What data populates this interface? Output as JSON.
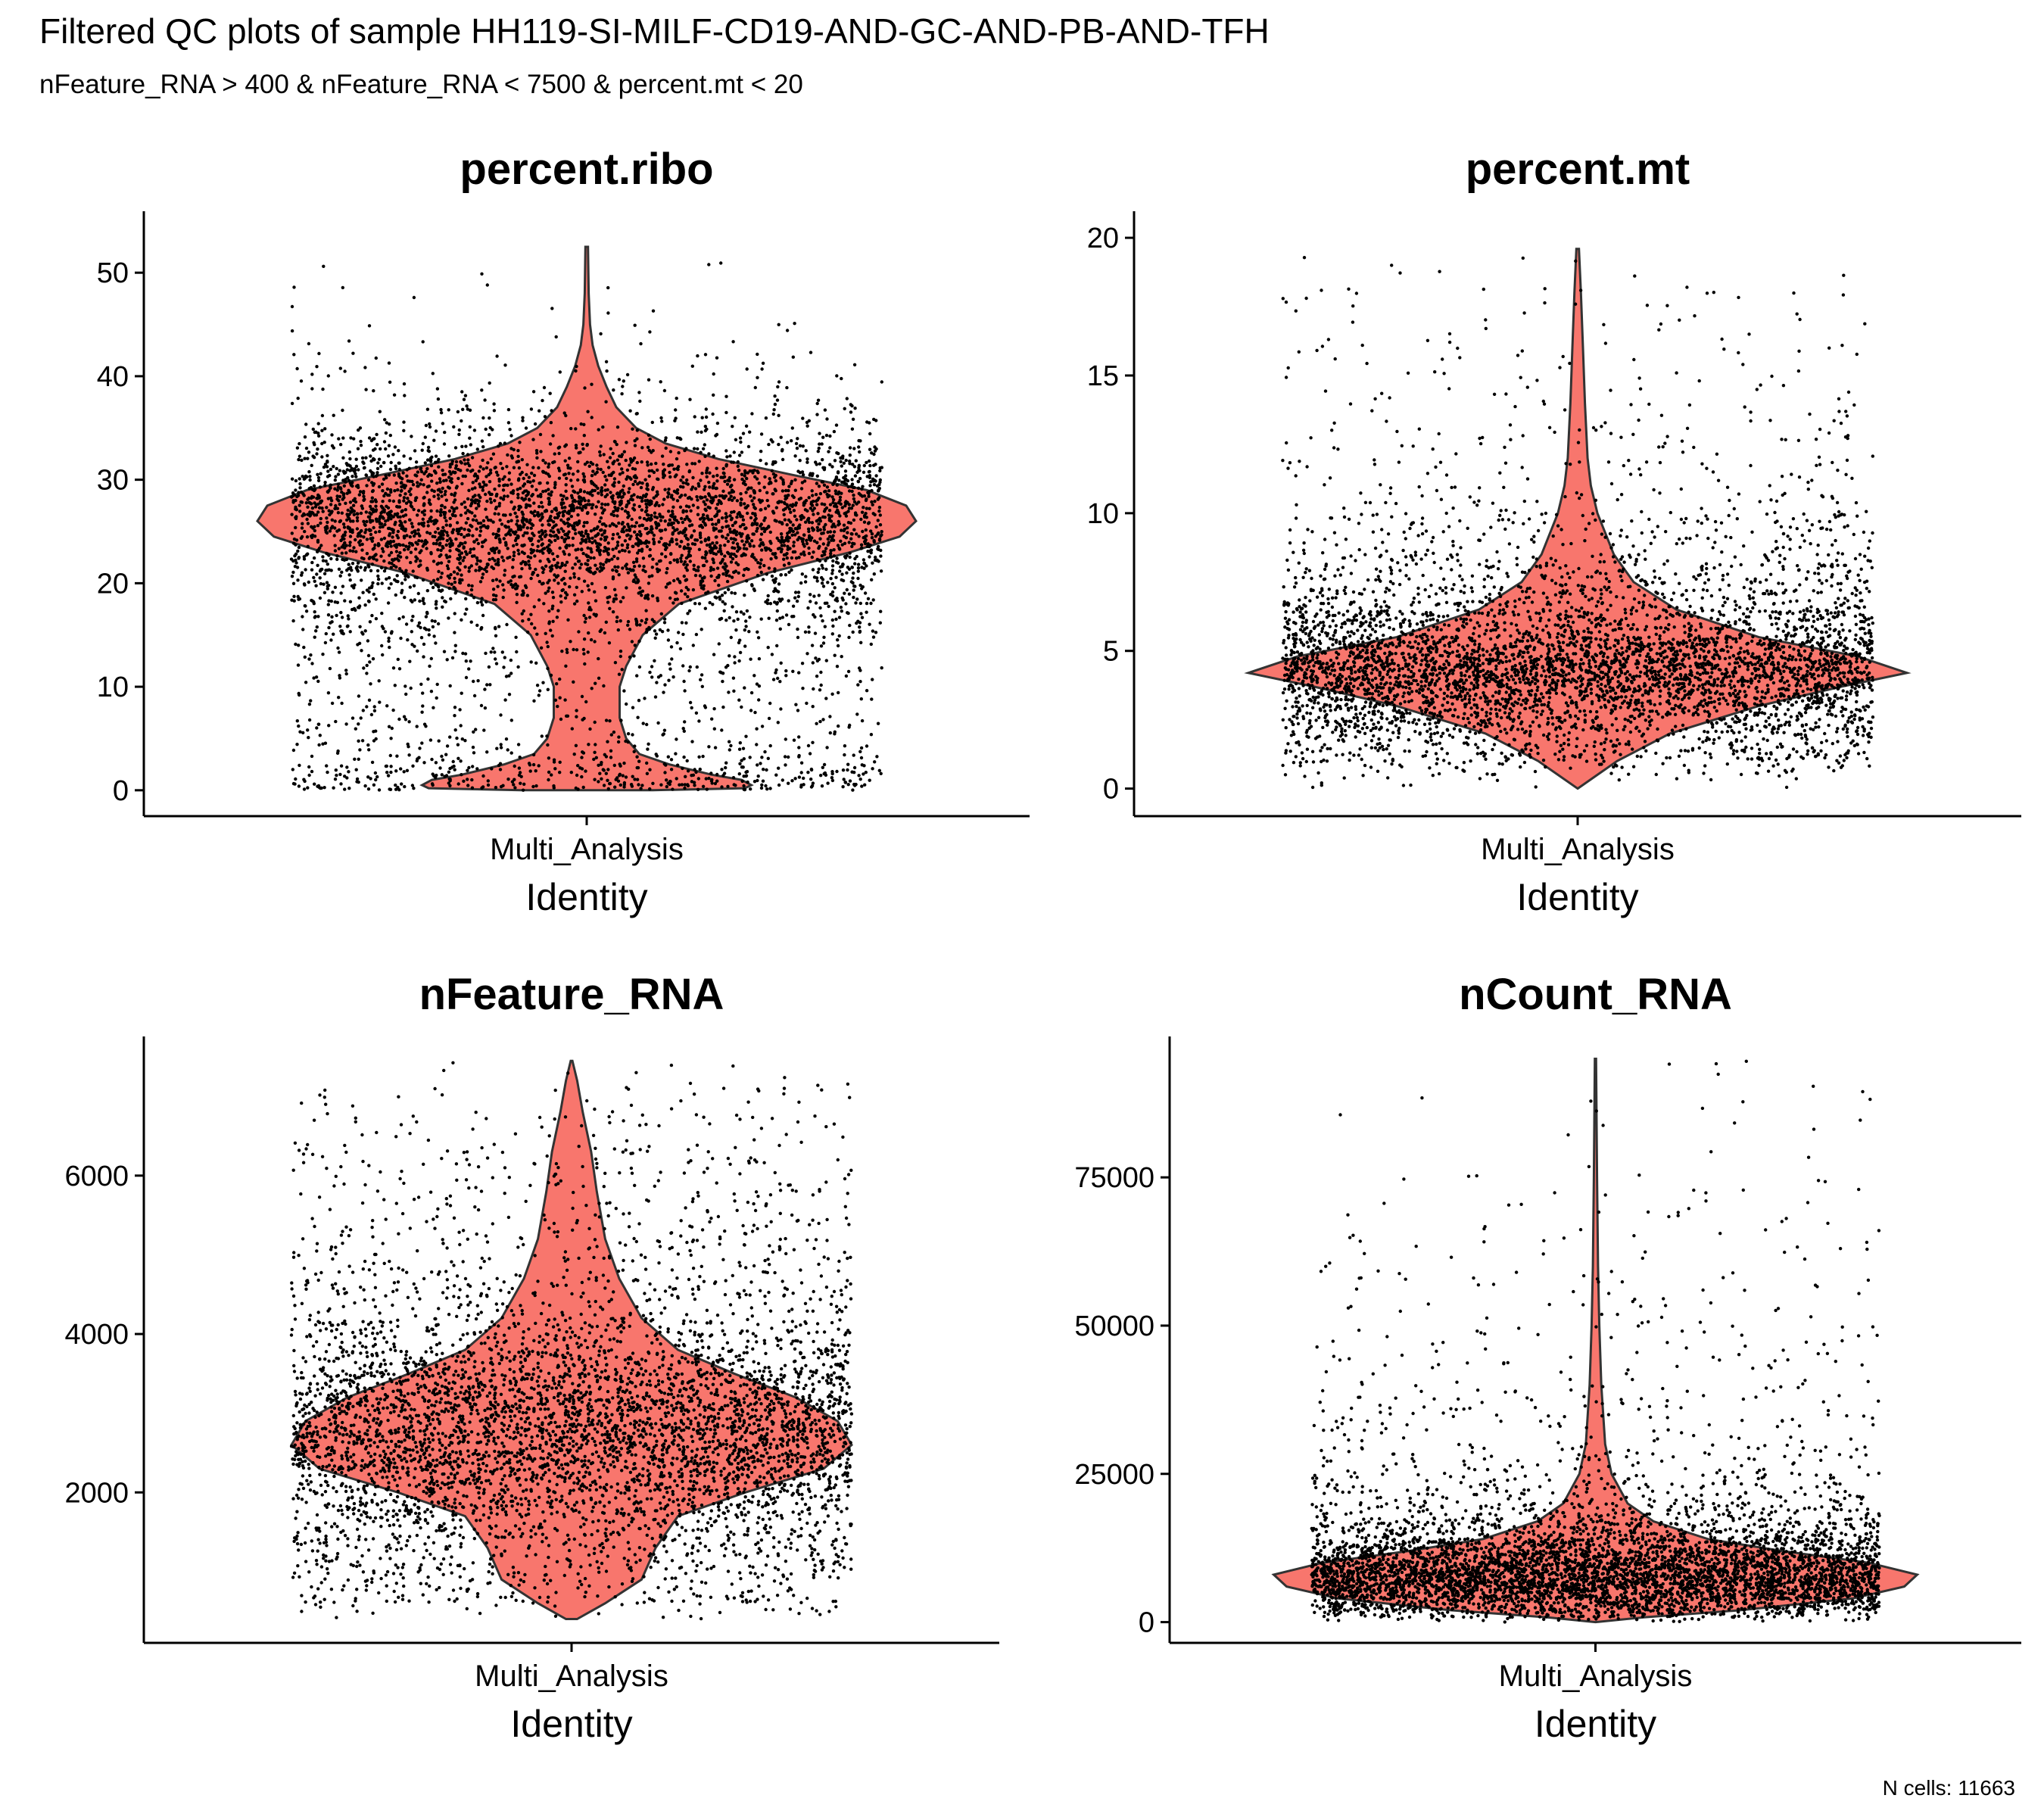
{
  "title": "Filtered QC plots of sample HH119-SI-MILF-CD19-AND-GC-AND-PB-AND-TFH",
  "subtitle": "nFeature_RNA > 400 & nFeature_RNA < 7500 & percent.mt < 20",
  "caption": "N cells: 11663",
  "colors": {
    "violin_fill": "#F8766D",
    "violin_stroke": "#333333",
    "points": "#000000",
    "axis": "#000000"
  },
  "chart_data": [
    {
      "type": "violin",
      "title": "percent.ribo",
      "xlabel": "Identity",
      "categories": [
        "Multi_Analysis"
      ],
      "ylim": [
        -2.5,
        55.5
      ],
      "yticks": [
        0,
        10,
        20,
        30,
        40,
        50
      ],
      "y_max": 52.5,
      "density": [
        [
          0,
          0.2
        ],
        [
          0.2,
          0.48
        ],
        [
          0.5,
          0.5
        ],
        [
          1,
          0.47
        ],
        [
          1.5,
          0.38
        ],
        [
          2.5,
          0.25
        ],
        [
          3.5,
          0.16
        ],
        [
          5,
          0.12
        ],
        [
          7,
          0.1
        ],
        [
          10,
          0.1
        ],
        [
          12,
          0.12
        ],
        [
          15,
          0.17
        ],
        [
          18,
          0.28
        ],
        [
          21,
          0.55
        ],
        [
          23,
          0.8
        ],
        [
          24.5,
          0.95
        ],
        [
          26,
          1.0
        ],
        [
          27.5,
          0.97
        ],
        [
          29,
          0.85
        ],
        [
          30.5,
          0.62
        ],
        [
          32,
          0.4
        ],
        [
          33.5,
          0.24
        ],
        [
          35,
          0.15
        ],
        [
          37,
          0.09
        ],
        [
          39,
          0.06
        ],
        [
          41,
          0.035
        ],
        [
          43,
          0.018
        ],
        [
          45,
          0.01
        ],
        [
          48,
          0.006
        ],
        [
          52.5,
          0.004
        ]
      ]
    },
    {
      "type": "violin",
      "title": "percent.mt",
      "xlabel": "Identity",
      "categories": [
        "Multi_Analysis"
      ],
      "ylim": [
        -1,
        20.8
      ],
      "yticks": [
        0,
        5,
        10,
        15,
        20
      ],
      "y_max": 19.6,
      "density": [
        [
          0,
          0.0
        ],
        [
          0.5,
          0.06
        ],
        [
          1,
          0.12
        ],
        [
          2,
          0.28
        ],
        [
          3,
          0.55
        ],
        [
          3.7,
          0.8
        ],
        [
          4.2,
          1.0
        ],
        [
          4.8,
          0.85
        ],
        [
          5.5,
          0.55
        ],
        [
          6.5,
          0.3
        ],
        [
          7.5,
          0.17
        ],
        [
          8.5,
          0.11
        ],
        [
          10,
          0.06
        ],
        [
          11,
          0.04
        ],
        [
          12,
          0.03
        ],
        [
          14,
          0.022
        ],
        [
          16,
          0.016
        ],
        [
          18,
          0.01
        ],
        [
          19.6,
          0.004
        ]
      ]
    },
    {
      "type": "violin",
      "title": "nFeature_RNA",
      "xlabel": "Identity",
      "categories": [
        "Multi_Analysis"
      ],
      "ylim": [
        100,
        7700
      ],
      "yticks": [
        2000,
        4000,
        6000
      ],
      "y_max": 7450,
      "density": [
        [
          401,
          0.02
        ],
        [
          600,
          0.12
        ],
        [
          900,
          0.25
        ],
        [
          1300,
          0.3
        ],
        [
          1700,
          0.38
        ],
        [
          2000,
          0.62
        ],
        [
          2300,
          0.9
        ],
        [
          2600,
          1.0
        ],
        [
          2900,
          0.95
        ],
        [
          3200,
          0.8
        ],
        [
          3500,
          0.58
        ],
        [
          3800,
          0.38
        ],
        [
          4200,
          0.25
        ],
        [
          4700,
          0.17
        ],
        [
          5200,
          0.12
        ],
        [
          5800,
          0.09
        ],
        [
          6300,
          0.07
        ],
        [
          6800,
          0.04
        ],
        [
          7200,
          0.02
        ],
        [
          7450,
          0.003
        ]
      ]
    },
    {
      "type": "violin",
      "title": "nCount_RNA",
      "xlabel": "Identity",
      "categories": [
        "Multi_Analysis"
      ],
      "ylim": [
        -3500,
        98000
      ],
      "yticks": [
        0,
        25000,
        50000,
        75000
      ],
      "y_max": 95000,
      "density": [
        [
          0,
          0.0
        ],
        [
          800,
          0.15
        ],
        [
          2000,
          0.45
        ],
        [
          4000,
          0.8
        ],
        [
          6000,
          0.96
        ],
        [
          8000,
          1.0
        ],
        [
          10000,
          0.85
        ],
        [
          12000,
          0.58
        ],
        [
          14000,
          0.35
        ],
        [
          17000,
          0.18
        ],
        [
          20000,
          0.1
        ],
        [
          25000,
          0.05
        ],
        [
          30000,
          0.03
        ],
        [
          40000,
          0.018
        ],
        [
          50000,
          0.012
        ],
        [
          60000,
          0.008
        ],
        [
          75000,
          0.005
        ],
        [
          95000,
          0.002
        ]
      ]
    }
  ]
}
